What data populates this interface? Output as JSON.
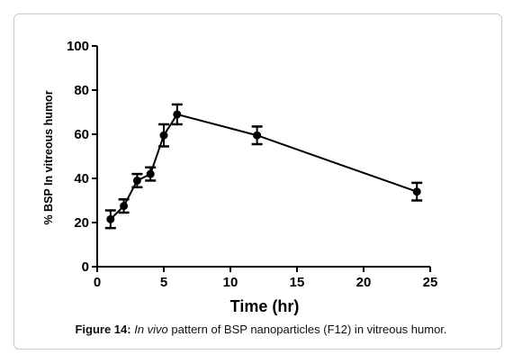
{
  "chart_data": {
    "type": "line",
    "title": "",
    "xlabel": "Time (hr)",
    "ylabel": "% BSP In vitreous humor",
    "xlim": [
      0,
      25
    ],
    "ylim": [
      0,
      100
    ],
    "x_ticks": [
      "0",
      "5",
      "10",
      "15",
      "20",
      "25"
    ],
    "y_ticks": [
      "0",
      "20",
      "40",
      "60",
      "80",
      "100"
    ],
    "grid": false,
    "series": [
      {
        "x": [
          1,
          2,
          3,
          4,
          5,
          6,
          12,
          24
        ],
        "y": [
          21.5,
          27.5,
          39,
          42,
          59.5,
          69,
          59.5,
          34
        ],
        "error": [
          4,
          3,
          3,
          3,
          5,
          4.5,
          4,
          4
        ]
      }
    ],
    "colors": {
      "line": "#000000",
      "marker": "#000000"
    }
  },
  "caption": {
    "label": "Figure 14:",
    "italic": "In vivo",
    "text": " pattern of BSP nanoparticles (F12) in vitreous humor."
  }
}
